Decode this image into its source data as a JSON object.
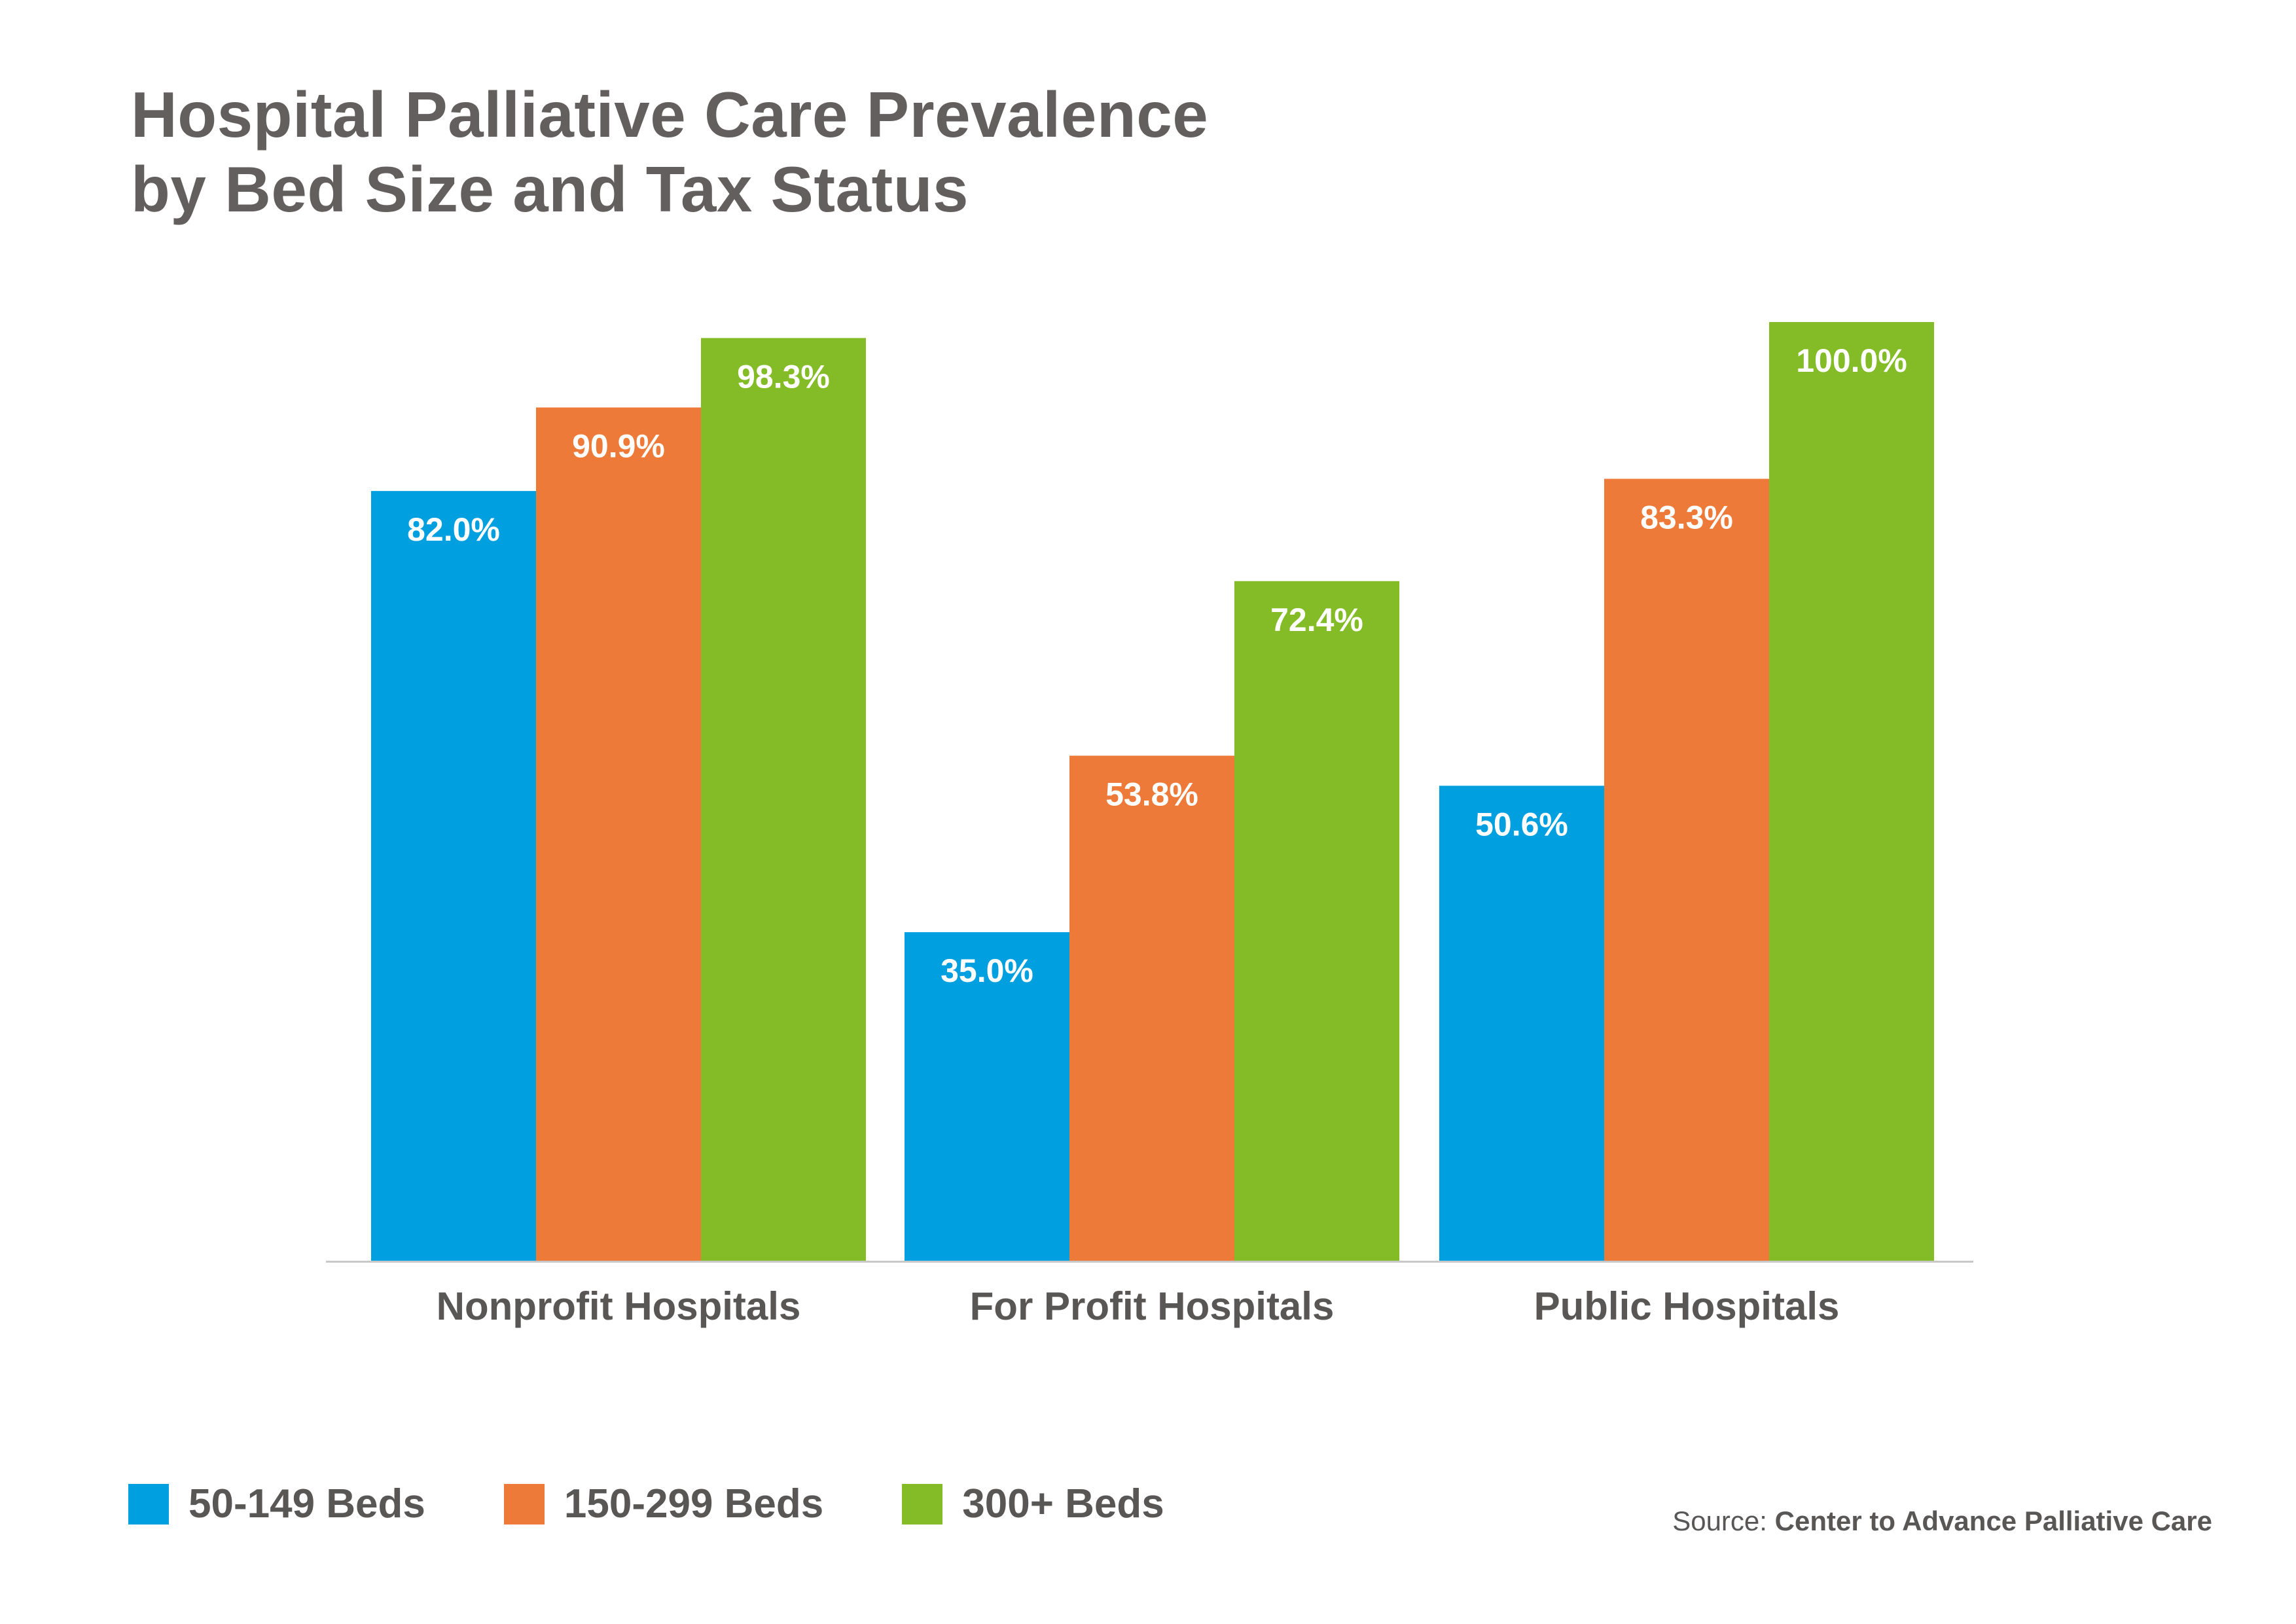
{
  "title_line1": "Hospital Palliative Care Prevalence",
  "title_line2": "by Bed Size and Tax Status",
  "source_prefix": "Source: ",
  "source_name": "Center to Advance Palliative Care",
  "legend": [
    {
      "label": "50-149 Beds",
      "color": "#009fdf"
    },
    {
      "label": "150-299 Beds",
      "color": "#ed7a38"
    },
    {
      "label": "300+ Beds",
      "color": "#83bc27"
    }
  ],
  "chart_data": {
    "type": "bar",
    "title": "Hospital Palliative Care Prevalence by Bed Size and Tax Status",
    "categories": [
      "Nonprofit Hospitals",
      "For Profit Hospitals",
      "Public Hospitals"
    ],
    "series": [
      {
        "name": "50-149 Beds",
        "color": "#009fdf",
        "values": [
          82.0,
          35.0,
          50.6
        ],
        "labels": [
          "82.0%",
          "35.0%",
          "50.6%"
        ]
      },
      {
        "name": "150-299 Beds",
        "color": "#ed7a38",
        "values": [
          90.9,
          53.8,
          83.3
        ],
        "labels": [
          "90.9%",
          "53.8%",
          "83.3%"
        ]
      },
      {
        "name": "300+ Beds",
        "color": "#83bc27",
        "values": [
          98.3,
          72.4,
          100.0
        ],
        "labels": [
          "98.3%",
          "72.4%",
          "100.0%"
        ]
      }
    ],
    "ylim": [
      0,
      100
    ],
    "grid": false,
    "legend_position": "bottom-left"
  }
}
